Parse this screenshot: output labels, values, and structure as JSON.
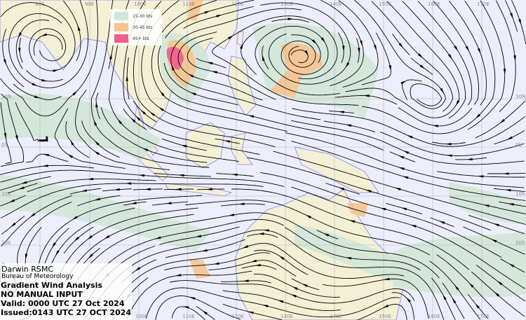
{
  "header": {
    "centre": "Darwin RSMC",
    "agency": "Bureau of Meteorology",
    "product": "Gradient Wind Analysis",
    "input_note": "NO MANUAL INPUT",
    "valid": "Valid:  0000 UTC 27 Oct 2024",
    "issued": "Issued:0143 UTC 27 OCT 2024"
  },
  "legend": [
    {
      "label": "15-30 kts",
      "color": "#d2e6d7"
    },
    {
      "label": "30-45 kts",
      "color": "#f6c38f"
    },
    {
      "label": "45+ kts",
      "color": "#f05c8c"
    }
  ],
  "longitude_labels": [
    "80E",
    "90E",
    "100E",
    "110E",
    "120E",
    "130E",
    "140E",
    "150E",
    "160E",
    "170E"
  ],
  "latitude_labels": [
    "10N",
    "0S",
    "10S",
    "20S"
  ],
  "colors": {
    "ocean": "#eceffb",
    "land": "#f4f0d6",
    "coastline": "#7f84f5",
    "streamline": "#000000",
    "grid": "#b8b8b8"
  }
}
